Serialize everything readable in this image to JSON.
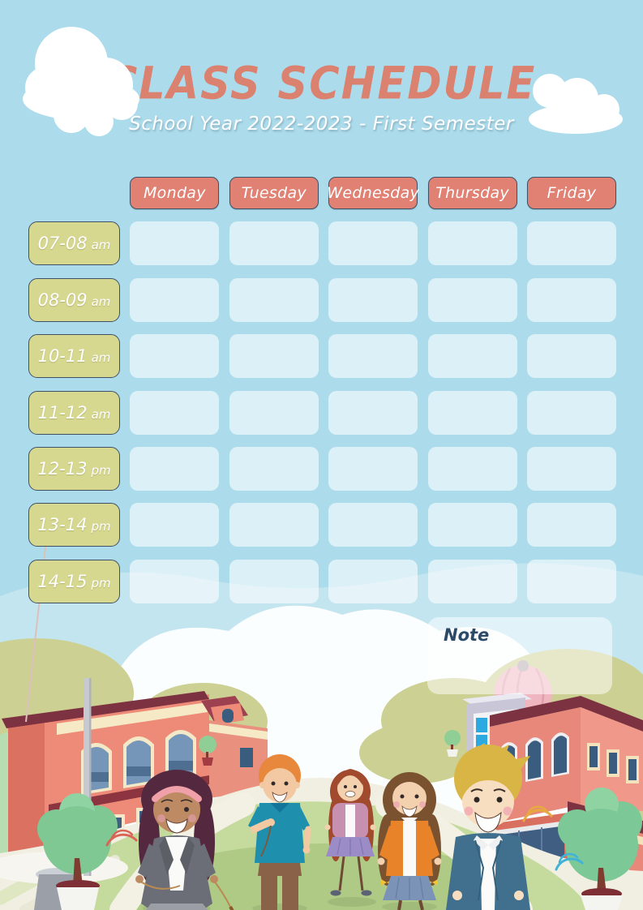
{
  "page": {
    "title": "CLASS SCHEDULE",
    "subtitle": "School Year 2022-2023 - First Semester"
  },
  "schedule": {
    "days": [
      "Monday",
      "Tuesday",
      "Wednesday",
      "Thursday",
      "Friday"
    ],
    "time_slots": [
      {
        "range": "07-08",
        "period": "am"
      },
      {
        "range": "08-09",
        "period": "am"
      },
      {
        "range": "10-11",
        "period": "am"
      },
      {
        "range": "11-12",
        "period": "am"
      },
      {
        "range": "12-13",
        "period": "pm"
      },
      {
        "range": "13-14",
        "period": "pm"
      },
      {
        "range": "14-15",
        "period": "pm"
      }
    ],
    "cells_empty": true
  },
  "note": {
    "label": "Note",
    "content": ""
  },
  "colors": {
    "sky": "#ACDCEB",
    "header_coral": "#E18173",
    "time_olive": "#D7D88F",
    "button_border": "#3F5166",
    "cell_bg": "rgba(255,255,255,0.58)",
    "title_coral": "#DB8170",
    "subtitle_text": "#FFFFFF",
    "note_text": "#2B4A68",
    "note_bg": "rgba(255,255,255,0.50)"
  }
}
